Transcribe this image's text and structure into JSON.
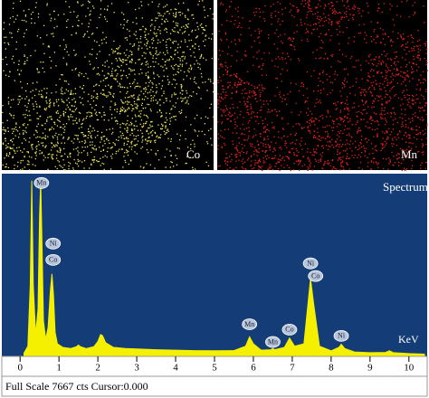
{
  "maps": [
    {
      "label": "Co",
      "color": "#e8e35a"
    },
    {
      "label": "Mn",
      "color": "#e3221c"
    }
  ],
  "chart_data": {
    "type": "area",
    "title": "Spectrum",
    "x_label": "KeV",
    "footer": "Full Scale 7667 cts Cursor:0.000",
    "color": "#f4f000",
    "background": "#143d78",
    "x": [
      0.1,
      0.2,
      0.26,
      0.3,
      0.34,
      0.4,
      0.46,
      0.5,
      0.53,
      0.56,
      0.6,
      0.66,
      0.72,
      0.78,
      0.82,
      0.86,
      0.9,
      0.96,
      1.1,
      1.3,
      1.45,
      1.5,
      1.55,
      1.7,
      1.9,
      2.0,
      2.07,
      2.12,
      2.2,
      2.4,
      2.7,
      3.0,
      3.5,
      4.0,
      4.5,
      5.0,
      5.5,
      5.8,
      5.9,
      6.0,
      6.2,
      6.45,
      6.5,
      6.55,
      6.8,
      6.93,
      7.06,
      7.3,
      7.42,
      7.47,
      7.55,
      7.7,
      8.0,
      8.2,
      8.26,
      8.35,
      8.6,
      9.0,
      9.4,
      9.5,
      9.6,
      10.0,
      10.4
    ],
    "values": [
      100,
      400,
      3000,
      7500,
      3000,
      900,
      2000,
      6000,
      7500,
      5000,
      1500,
      700,
      1200,
      2800,
      3500,
      2600,
      1000,
      500,
      350,
      300,
      380,
      450,
      380,
      300,
      380,
      600,
      900,
      850,
      550,
      350,
      300,
      280,
      250,
      230,
      210,
      200,
      210,
      400,
      800,
      500,
      230,
      250,
      300,
      250,
      350,
      750,
      400,
      500,
      2500,
      3300,
      2200,
      400,
      200,
      350,
      480,
      300,
      150,
      120,
      130,
      200,
      120,
      80,
      60
    ],
    "xlim": [
      -0.47,
      10.47
    ],
    "ylim": [
      0,
      7800
    ],
    "xticks": [
      0,
      1,
      2,
      3,
      4,
      5,
      6,
      7,
      8,
      9,
      10
    ],
    "annotations": [
      {
        "text": "Mn",
        "x": 0.55,
        "y": 7400
      },
      {
        "text": "Ni",
        "x": 0.85,
        "y": 4800
      },
      {
        "text": "Co",
        "x": 0.85,
        "y": 4100
      },
      {
        "text": "Mn",
        "x": 5.9,
        "y": 1340
      },
      {
        "text": "Mn",
        "x": 6.5,
        "y": 580
      },
      {
        "text": "Co",
        "x": 6.93,
        "y": 1110
      },
      {
        "text": "Ni",
        "x": 7.47,
        "y": 3950
      },
      {
        "text": "Co",
        "x": 7.6,
        "y": 3410
      },
      {
        "text": "Ni",
        "x": 8.26,
        "y": 840
      }
    ]
  }
}
